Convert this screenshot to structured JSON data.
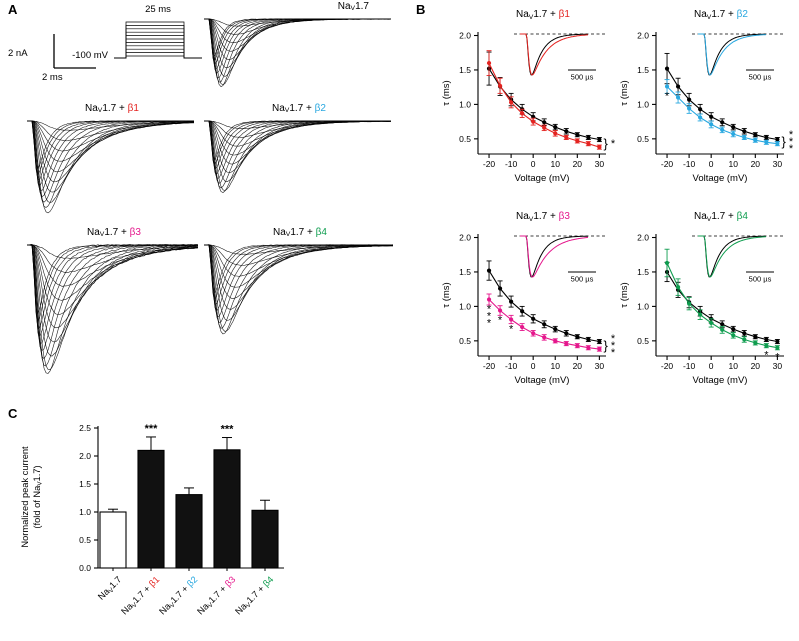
{
  "figure": {
    "background": "#ffffff",
    "nav": {
      "pre": "Na",
      "sub": "V",
      "num": "1.7",
      "plus": " + "
    },
    "colors": {
      "control": "#000000",
      "b1": "#e42320",
      "b2": "#29a8e0",
      "b3": "#e5178c",
      "b4": "#0f9d4f"
    }
  },
  "panel_a": {
    "label": "A",
    "protocol": {
      "top_label": "25 ms",
      "hold_label": "-100 mV"
    },
    "scale": {
      "v": "2 nA",
      "h": "2 ms"
    },
    "families": [
      {
        "key": "nav",
        "beta": ""
      },
      {
        "key": "b1",
        "beta": "β1"
      },
      {
        "key": "b2",
        "beta": "β2"
      },
      {
        "key": "b3",
        "beta": "β3"
      },
      {
        "key": "b4",
        "beta": "β4"
      }
    ]
  },
  "panel_b": {
    "label": "B"
  },
  "panel_c": {
    "label": "C"
  },
  "chart_data": [
    {
      "id": "tau-b1",
      "type": "line",
      "panel": "B",
      "title_beta": "β1",
      "color_key": "b1",
      "xlabel": "Voltage (mV)",
      "ylabel": "τ (ms)",
      "xticks": [
        -20,
        -10,
        0,
        10,
        20,
        30
      ],
      "yticks": [
        0.5,
        1.0,
        1.5,
        2.0
      ],
      "xlim": [
        -25,
        33
      ],
      "ylim": [
        0.28,
        2.08
      ],
      "x": [
        -20,
        -15,
        -10,
        -5,
        0,
        5,
        10,
        15,
        20,
        25,
        30
      ],
      "series": [
        {
          "name": "NaV1.7",
          "color_key": "control",
          "values": [
            1.52,
            1.26,
            1.07,
            0.93,
            0.82,
            0.74,
            0.67,
            0.61,
            0.56,
            0.52,
            0.49
          ],
          "errors": [
            0.24,
            0.13,
            0.09,
            0.07,
            0.06,
            0.05,
            0.04,
            0.04,
            0.03,
            0.03,
            0.03
          ]
        },
        {
          "name": "NaV1.7 + β1",
          "color_key": "b1",
          "values": [
            1.6,
            1.27,
            1.03,
            0.87,
            0.75,
            0.66,
            0.58,
            0.52,
            0.47,
            0.43,
            0.38
          ],
          "errors": [
            0.18,
            0.11,
            0.08,
            0.06,
            0.05,
            0.04,
            0.04,
            0.03,
            0.03,
            0.03,
            0.03
          ]
        }
      ],
      "inset_scale_label": "500 µs",
      "sig_right_stars": 1,
      "sig_points": []
    },
    {
      "id": "tau-b2",
      "type": "line",
      "panel": "B",
      "title_beta": "β2",
      "color_key": "b2",
      "xlabel": "Voltage (mV)",
      "ylabel": "τ (ms)",
      "xticks": [
        -20,
        -10,
        0,
        10,
        20,
        30
      ],
      "yticks": [
        0.5,
        1.0,
        1.5,
        2.0
      ],
      "xlim": [
        -25,
        33
      ],
      "ylim": [
        0.28,
        2.08
      ],
      "x": [
        -20,
        -15,
        -10,
        -5,
        0,
        5,
        10,
        15,
        20,
        25,
        30
      ],
      "series": [
        {
          "name": "NaV1.7",
          "color_key": "control",
          "values": [
            1.52,
            1.26,
            1.07,
            0.93,
            0.82,
            0.74,
            0.67,
            0.61,
            0.56,
            0.52,
            0.49
          ],
          "errors": [
            0.22,
            0.12,
            0.09,
            0.07,
            0.06,
            0.05,
            0.04,
            0.04,
            0.03,
            0.03,
            0.03
          ]
        },
        {
          "name": "NaV1.7 + β2",
          "color_key": "b2",
          "values": [
            1.26,
            1.1,
            0.94,
            0.81,
            0.71,
            0.63,
            0.57,
            0.52,
            0.48,
            0.45,
            0.43
          ],
          "errors": [
            0.1,
            0.08,
            0.07,
            0.05,
            0.05,
            0.04,
            0.04,
            0.03,
            0.03,
            0.03,
            0.03
          ]
        }
      ],
      "inset_scale_label": "500 µs",
      "sig_right_stars": 3,
      "sig_points": [
        {
          "index": 0,
          "stars": 1
        }
      ]
    },
    {
      "id": "tau-b3",
      "type": "line",
      "panel": "B",
      "title_beta": "β3",
      "color_key": "b3",
      "xlabel": "Voltage (mV)",
      "ylabel": "τ (ms)",
      "xticks": [
        -20,
        -10,
        0,
        10,
        20,
        30
      ],
      "yticks": [
        0.5,
        1.0,
        1.5,
        2.0
      ],
      "xlim": [
        -25,
        33
      ],
      "ylim": [
        0.28,
        2.08
      ],
      "x": [
        -20,
        -15,
        -10,
        -5,
        0,
        5,
        10,
        15,
        20,
        25,
        30
      ],
      "series": [
        {
          "name": "NaV1.7",
          "color_key": "control",
          "values": [
            1.52,
            1.26,
            1.07,
            0.93,
            0.82,
            0.74,
            0.67,
            0.61,
            0.56,
            0.52,
            0.49
          ],
          "errors": [
            0.14,
            0.11,
            0.08,
            0.07,
            0.06,
            0.05,
            0.04,
            0.04,
            0.03,
            0.03,
            0.03
          ]
        },
        {
          "name": "NaV1.7 + β3",
          "color_key": "b3",
          "values": [
            1.1,
            0.94,
            0.81,
            0.7,
            0.61,
            0.55,
            0.5,
            0.46,
            0.43,
            0.4,
            0.38
          ],
          "errors": [
            0.08,
            0.07,
            0.06,
            0.05,
            0.04,
            0.04,
            0.03,
            0.03,
            0.03,
            0.03,
            0.03
          ]
        }
      ],
      "inset_scale_label": "500 µs",
      "sig_right_stars": 3,
      "sig_points": [
        {
          "index": 0,
          "stars": 3
        },
        {
          "index": 1,
          "stars": 1
        },
        {
          "index": 2,
          "stars": 1
        }
      ]
    },
    {
      "id": "tau-b4",
      "type": "line",
      "panel": "B",
      "title_beta": "β4",
      "color_key": "b4",
      "xlabel": "Voltage (mV)",
      "ylabel": "τ (ms)",
      "xticks": [
        -20,
        -10,
        0,
        10,
        20,
        30
      ],
      "yticks": [
        0.5,
        1.0,
        1.5,
        2.0
      ],
      "xlim": [
        -25,
        33
      ],
      "ylim": [
        0.28,
        2.08
      ],
      "x": [
        -20,
        -15,
        -10,
        -5,
        0,
        5,
        10,
        15,
        20,
        25,
        30
      ],
      "series": [
        {
          "name": "NaV1.7",
          "color_key": "control",
          "values": [
            1.5,
            1.24,
            1.06,
            0.93,
            0.82,
            0.74,
            0.67,
            0.61,
            0.56,
            0.52,
            0.49
          ],
          "errors": [
            0.14,
            0.11,
            0.08,
            0.07,
            0.06,
            0.05,
            0.04,
            0.04,
            0.03,
            0.03,
            0.03
          ]
        },
        {
          "name": "NaV1.7 + β4",
          "color_key": "b4",
          "values": [
            1.63,
            1.28,
            1.04,
            0.88,
            0.76,
            0.66,
            0.58,
            0.52,
            0.47,
            0.43,
            0.4
          ],
          "errors": [
            0.2,
            0.12,
            0.09,
            0.07,
            0.06,
            0.05,
            0.04,
            0.04,
            0.03,
            0.03,
            0.03
          ]
        }
      ],
      "inset_scale_label": "500 µs",
      "sig_right_stars": 0,
      "sig_points": [
        {
          "index": 9,
          "stars": 1
        },
        {
          "index": 10,
          "stars": 1
        }
      ]
    },
    {
      "id": "peak-current",
      "type": "bar",
      "panel": "C",
      "ylabel_line1": "Normalized peak current",
      "ylabel_line2_pre": "(fold of ",
      "ylabel_line2_post": ")",
      "yticks": [
        0.0,
        0.5,
        1.0,
        1.5,
        2.0,
        2.5
      ],
      "ylim": [
        0,
        2.5
      ],
      "categories": [
        "NaV1.7",
        "NaV1.7 + β1",
        "NaV1.7 + β2",
        "NaV1.7 + β3",
        "NaV1.7 + β4"
      ],
      "categories_beta": [
        "",
        "β1",
        "β2",
        "β3",
        "β4"
      ],
      "values": [
        1.0,
        2.1,
        1.31,
        2.11,
        1.03
      ],
      "errors": [
        0.05,
        0.24,
        0.12,
        0.22,
        0.18
      ],
      "significance": [
        "",
        "***",
        "",
        "***",
        ""
      ],
      "bar_fills": [
        "#ffffff",
        "#111111",
        "#111111",
        "#111111",
        "#111111"
      ]
    }
  ]
}
